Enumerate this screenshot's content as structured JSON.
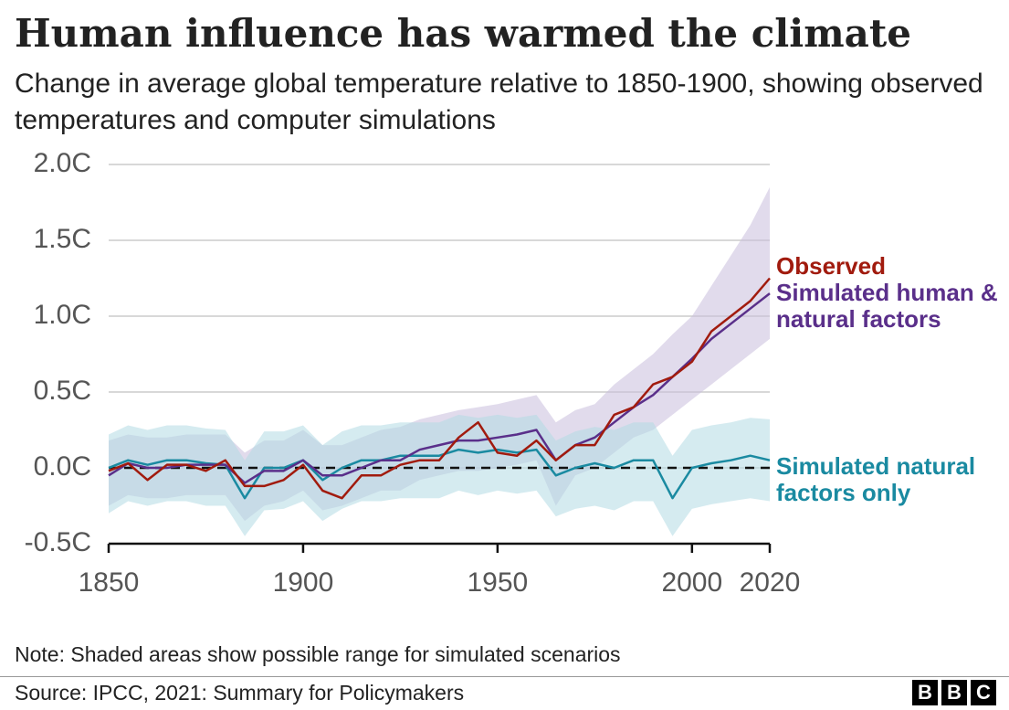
{
  "chart_data": {
    "type": "line",
    "title": "Human influence has warmed the climate",
    "subtitle": "Change in average global temperature relative to 1850-1900, showing observed temperatures and computer simulations",
    "x": [
      1850,
      1855,
      1860,
      1865,
      1870,
      1875,
      1880,
      1885,
      1890,
      1895,
      1900,
      1905,
      1910,
      1915,
      1920,
      1925,
      1930,
      1935,
      1940,
      1945,
      1950,
      1955,
      1960,
      1965,
      1970,
      1975,
      1980,
      1985,
      1990,
      1995,
      2000,
      2005,
      2010,
      2015,
      2020
    ],
    "series": [
      {
        "name": "Observed",
        "color": "#a11b0e",
        "values": [
          -0.02,
          0.03,
          -0.08,
          0.02,
          0.02,
          -0.02,
          0.05,
          -0.12,
          -0.12,
          -0.08,
          0.02,
          -0.15,
          -0.2,
          -0.05,
          -0.05,
          0.02,
          0.05,
          0.05,
          0.2,
          0.3,
          0.1,
          0.08,
          0.18,
          0.05,
          0.15,
          0.15,
          0.35,
          0.4,
          0.55,
          0.6,
          0.7,
          0.9,
          1.0,
          1.1,
          1.25
        ]
      },
      {
        "name": "Simulated human & natural factors",
        "color": "#5a2f8a",
        "band_color": "#c9bedc",
        "values": [
          -0.05,
          0.03,
          0.0,
          0.0,
          0.02,
          0.02,
          0.02,
          -0.1,
          -0.02,
          -0.02,
          0.05,
          -0.05,
          -0.05,
          0.0,
          0.05,
          0.05,
          0.12,
          0.15,
          0.18,
          0.18,
          0.2,
          0.22,
          0.25,
          0.05,
          0.15,
          0.2,
          0.3,
          0.4,
          0.48,
          0.6,
          0.72,
          0.85,
          0.95,
          1.05,
          1.15
        ],
        "band_low": [
          -0.25,
          -0.18,
          -0.2,
          -0.2,
          -0.18,
          -0.18,
          -0.18,
          -0.35,
          -0.25,
          -0.22,
          -0.15,
          -0.28,
          -0.25,
          -0.2,
          -0.15,
          -0.15,
          -0.08,
          -0.05,
          -0.02,
          -0.02,
          0.0,
          0.02,
          0.05,
          -0.25,
          -0.05,
          0.0,
          0.1,
          0.2,
          0.25,
          0.35,
          0.45,
          0.55,
          0.65,
          0.75,
          0.85
        ],
        "band_high": [
          0.18,
          0.22,
          0.2,
          0.2,
          0.22,
          0.22,
          0.22,
          0.1,
          0.18,
          0.18,
          0.25,
          0.15,
          0.15,
          0.2,
          0.25,
          0.27,
          0.32,
          0.35,
          0.38,
          0.4,
          0.42,
          0.45,
          0.48,
          0.3,
          0.38,
          0.42,
          0.55,
          0.65,
          0.75,
          0.88,
          1.0,
          1.2,
          1.4,
          1.6,
          1.85
        ]
      },
      {
        "name": "Simulated natural factors only",
        "color": "#1a8aa1",
        "band_color": "#b3dbe3",
        "values": [
          0.0,
          0.05,
          0.02,
          0.05,
          0.05,
          0.03,
          0.02,
          -0.2,
          0.0,
          0.0,
          0.05,
          -0.08,
          0.0,
          0.05,
          0.05,
          0.08,
          0.08,
          0.08,
          0.12,
          0.1,
          0.12,
          0.1,
          0.12,
          -0.05,
          0.0,
          0.03,
          0.0,
          0.05,
          0.05,
          -0.2,
          0.0,
          0.03,
          0.05,
          0.08,
          0.05
        ],
        "band_low": [
          -0.3,
          -0.22,
          -0.25,
          -0.22,
          -0.22,
          -0.25,
          -0.25,
          -0.45,
          -0.28,
          -0.27,
          -0.22,
          -0.35,
          -0.27,
          -0.22,
          -0.22,
          -0.2,
          -0.2,
          -0.2,
          -0.15,
          -0.18,
          -0.15,
          -0.17,
          -0.15,
          -0.32,
          -0.27,
          -0.25,
          -0.28,
          -0.22,
          -0.22,
          -0.45,
          -0.27,
          -0.24,
          -0.22,
          -0.2,
          -0.22
        ],
        "band_high": [
          0.22,
          0.28,
          0.25,
          0.28,
          0.28,
          0.26,
          0.25,
          0.05,
          0.24,
          0.24,
          0.28,
          0.15,
          0.24,
          0.28,
          0.28,
          0.3,
          0.3,
          0.3,
          0.35,
          0.33,
          0.35,
          0.33,
          0.35,
          0.18,
          0.24,
          0.27,
          0.25,
          0.3,
          0.3,
          0.08,
          0.25,
          0.28,
          0.3,
          0.33,
          0.32
        ]
      }
    ],
    "xlim": [
      1850,
      2020
    ],
    "xticks": [
      1850,
      1900,
      1950,
      2000,
      2020
    ],
    "ylim": [
      -0.5,
      2.0
    ],
    "yticks": [
      {
        "value": -0.5,
        "label": "-0.5C"
      },
      {
        "value": 0,
        "label": "0.0C"
      },
      {
        "value": 0.5,
        "label": "0.5C"
      },
      {
        "value": 1,
        "label": "1.0C"
      },
      {
        "value": 1.5,
        "label": "1.5C"
      },
      {
        "value": 2,
        "label": "2.0C"
      }
    ],
    "grid": true,
    "reference_line": 0,
    "note": "Note: Shaded areas show possible range for simulated scenarios",
    "source": "Source: IPCC, 2021: Summary for Policymakers",
    "logo": [
      "B",
      "B",
      "C"
    ]
  }
}
